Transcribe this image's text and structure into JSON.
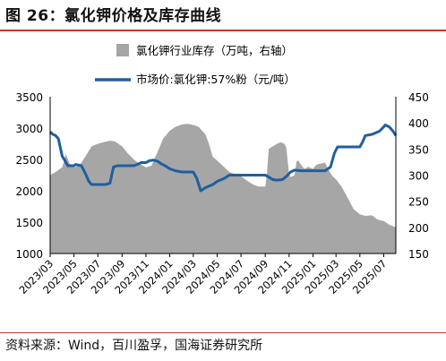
{
  "figure": {
    "title": "图 26：氯化钾价格及库存曲线",
    "source": "资料来源：Wind，百川盈孚，国海证券研究所"
  },
  "chart_data": {
    "type": "area+line",
    "x_tick_labels": [
      "2023/03",
      "2023/05",
      "2023/07",
      "2023/09",
      "2023/11",
      "2024/01",
      "2024/03",
      "2024/05",
      "2024/07",
      "2024/09",
      "2024/11",
      "2025/01",
      "2025/03",
      "2025/05",
      "2025/07"
    ],
    "x_start": "2023/03",
    "x_end": "2025/08",
    "left_axis": {
      "ylim": [
        1000,
        3500
      ],
      "ticks": [
        "1000",
        "1500",
        "2000",
        "2500",
        "3000",
        "3500"
      ]
    },
    "right_axis": {
      "ylim": [
        150,
        450
      ],
      "ticks": [
        "150",
        "200",
        "250",
        "300",
        "350",
        "400",
        "450"
      ]
    },
    "legend": {
      "placement": "top-right"
    },
    "colors": {
      "area": "#a6a6a6",
      "line": "#1f5f9e"
    },
    "series": [
      {
        "name": "市场价:氯化钾:57%粉（元/吨）",
        "type": "line",
        "axis": "left",
        "unit": "元/吨",
        "points": [
          [
            "2023/03/01",
            2940
          ],
          [
            "2023/03/08",
            2900
          ],
          [
            "2023/03/15",
            2880
          ],
          [
            "2023/03/22",
            2830
          ],
          [
            "2023/04/01",
            2550
          ],
          [
            "2023/04/08",
            2480
          ],
          [
            "2023/04/15",
            2400
          ],
          [
            "2023/04/25",
            2400
          ],
          [
            "2023/05/01",
            2400
          ],
          [
            "2023/05/05",
            2420
          ],
          [
            "2023/05/20",
            2400
          ],
          [
            "2023/06/01",
            2250
          ],
          [
            "2023/06/08",
            2150
          ],
          [
            "2023/06/15",
            2100
          ],
          [
            "2023/07/01",
            2100
          ],
          [
            "2023/07/20",
            2100
          ],
          [
            "2023/08/01",
            2120
          ],
          [
            "2023/08/10",
            2380
          ],
          [
            "2023/08/20",
            2400
          ],
          [
            "2023/10/01",
            2400
          ],
          [
            "2023/10/10",
            2420
          ],
          [
            "2023/10/20",
            2450
          ],
          [
            "2023/11/01",
            2450
          ],
          [
            "2023/11/10",
            2480
          ],
          [
            "2023/11/20",
            2490
          ],
          [
            "2023/12/01",
            2470
          ],
          [
            "2023/12/10",
            2430
          ],
          [
            "2023/12/20",
            2400
          ],
          [
            "2024/01/01",
            2350
          ],
          [
            "2024/01/15",
            2320
          ],
          [
            "2024/02/01",
            2300
          ],
          [
            "2024/02/20",
            2300
          ],
          [
            "2024/03/01",
            2300
          ],
          [
            "2024/03/10",
            2200
          ],
          [
            "2024/03/20",
            2000
          ],
          [
            "2024/04/01",
            2050
          ],
          [
            "2024/04/20",
            2100
          ],
          [
            "2024/05/01",
            2150
          ],
          [
            "2024/05/20",
            2200
          ],
          [
            "2024/06/01",
            2250
          ],
          [
            "2024/07/01",
            2250
          ],
          [
            "2024/08/01",
            2250
          ],
          [
            "2024/09/01",
            2250
          ],
          [
            "2024/09/10",
            2220
          ],
          [
            "2024/09/20",
            2180
          ],
          [
            "2024/10/01",
            2170
          ],
          [
            "2024/10/15",
            2180
          ],
          [
            "2024/10/25",
            2230
          ],
          [
            "2024/11/05",
            2300
          ],
          [
            "2024/11/15",
            2330
          ],
          [
            "2024/12/01",
            2320
          ],
          [
            "2025/01/01",
            2320
          ],
          [
            "2025/02/01",
            2320
          ],
          [
            "2025/02/15",
            2380
          ],
          [
            "2025/02/25",
            2600
          ],
          [
            "2025/03/05",
            2700
          ],
          [
            "2025/04/01",
            2700
          ],
          [
            "2025/05/01",
            2700
          ],
          [
            "2025/05/08",
            2780
          ],
          [
            "2025/05/15",
            2880
          ],
          [
            "2025/06/01",
            2900
          ],
          [
            "2025/06/20",
            2950
          ],
          [
            "2025/07/01",
            3020
          ],
          [
            "2025/07/05",
            3050
          ],
          [
            "2025/07/15",
            3020
          ],
          [
            "2025/07/25",
            2950
          ],
          [
            "2025/08/01",
            2880
          ]
        ]
      },
      {
        "name": "氯化钾行业库存（万吨，右轴）",
        "type": "area",
        "axis": "right",
        "unit": "万吨",
        "points": [
          [
            "2023/03/01",
            300
          ],
          [
            "2023/03/15",
            306
          ],
          [
            "2023/04/01",
            315
          ],
          [
            "2023/04/10",
            340
          ],
          [
            "2023/04/20",
            322
          ],
          [
            "2023/05/01",
            315
          ],
          [
            "2023/05/15",
            318
          ],
          [
            "2023/06/01",
            338
          ],
          [
            "2023/06/15",
            355
          ],
          [
            "2023/07/01",
            360
          ],
          [
            "2023/07/15",
            363
          ],
          [
            "2023/08/01",
            366
          ],
          [
            "2023/08/15",
            364
          ],
          [
            "2023/09/01",
            355
          ],
          [
            "2023/09/15",
            342
          ],
          [
            "2023/10/01",
            330
          ],
          [
            "2023/10/15",
            322
          ],
          [
            "2023/11/01",
            315
          ],
          [
            "2023/11/15",
            318
          ],
          [
            "2023/12/01",
            345
          ],
          [
            "2023/12/15",
            370
          ],
          [
            "2024/01/01",
            385
          ],
          [
            "2024/01/15",
            392
          ],
          [
            "2024/02/01",
            397
          ],
          [
            "2024/02/15",
            398
          ],
          [
            "2024/03/01",
            396
          ],
          [
            "2024/03/15",
            392
          ],
          [
            "2024/04/01",
            378
          ],
          [
            "2024/04/10",
            360
          ],
          [
            "2024/04/20",
            335
          ],
          [
            "2024/05/01",
            328
          ],
          [
            "2024/05/15",
            318
          ],
          [
            "2024/06/01",
            306
          ],
          [
            "2024/06/15",
            302
          ],
          [
            "2024/07/01",
            298
          ],
          [
            "2024/07/15",
            290
          ],
          [
            "2024/08/01",
            282
          ],
          [
            "2024/08/15",
            278
          ],
          [
            "2024/09/01",
            278
          ],
          [
            "2024/09/05",
            300
          ],
          [
            "2024/09/10",
            350
          ],
          [
            "2024/09/20",
            355
          ],
          [
            "2024/10/01",
            360
          ],
          [
            "2024/10/10",
            363
          ],
          [
            "2024/10/20",
            360
          ],
          [
            "2024/10/25",
            352
          ],
          [
            "2024/11/01",
            302
          ],
          [
            "2024/11/05",
            296
          ],
          [
            "2024/11/15",
            300
          ],
          [
            "2024/11/20",
            326
          ],
          [
            "2024/11/25",
            328
          ],
          [
            "2024/12/01",
            320
          ],
          [
            "2024/12/10",
            312
          ],
          [
            "2024/12/20",
            316
          ],
          [
            "2025/01/01",
            312
          ],
          [
            "2025/01/10",
            320
          ],
          [
            "2025/01/20",
            322
          ],
          [
            "2025/02/01",
            324
          ],
          [
            "2025/02/10",
            310
          ],
          [
            "2025/02/20",
            298
          ],
          [
            "2025/03/01",
            292
          ],
          [
            "2025/03/15",
            278
          ],
          [
            "2025/04/01",
            255
          ],
          [
            "2025/04/15",
            235
          ],
          [
            "2025/05/01",
            225
          ],
          [
            "2025/05/15",
            222
          ],
          [
            "2025/06/01",
            223
          ],
          [
            "2025/06/15",
            215
          ],
          [
            "2025/07/01",
            212
          ],
          [
            "2025/07/15",
            205
          ],
          [
            "2025/08/01",
            200
          ]
        ]
      }
    ]
  }
}
